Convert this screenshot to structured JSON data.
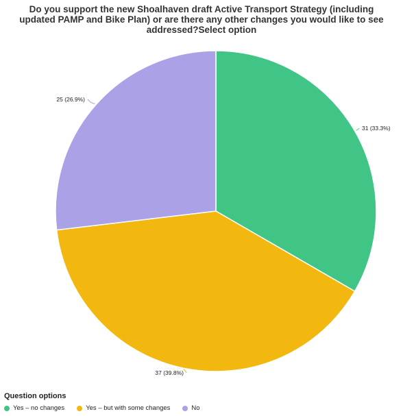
{
  "chart_data": {
    "type": "pie",
    "title_lines": [
      "Do you support the new Shoalhaven draft Active Transport Strategy (including",
      "updated PAMP and Bike Plan) or are there any other changes you would like to see",
      "addressed?Select option"
    ],
    "legend_title": "Question options",
    "legend_placement": "bottom-left",
    "slices": [
      {
        "label": "Yes – no changes",
        "value": 31,
        "percent_label": "31 (33.3%)",
        "color": "#41c587"
      },
      {
        "label": "Yes – but with some changes",
        "value": 37,
        "percent_label": "37 (39.8%)",
        "color": "#f2b80f"
      },
      {
        "label": "No",
        "value": 25,
        "percent_label": "25 (26.9%)",
        "color": "#aba1e6"
      }
    ]
  }
}
